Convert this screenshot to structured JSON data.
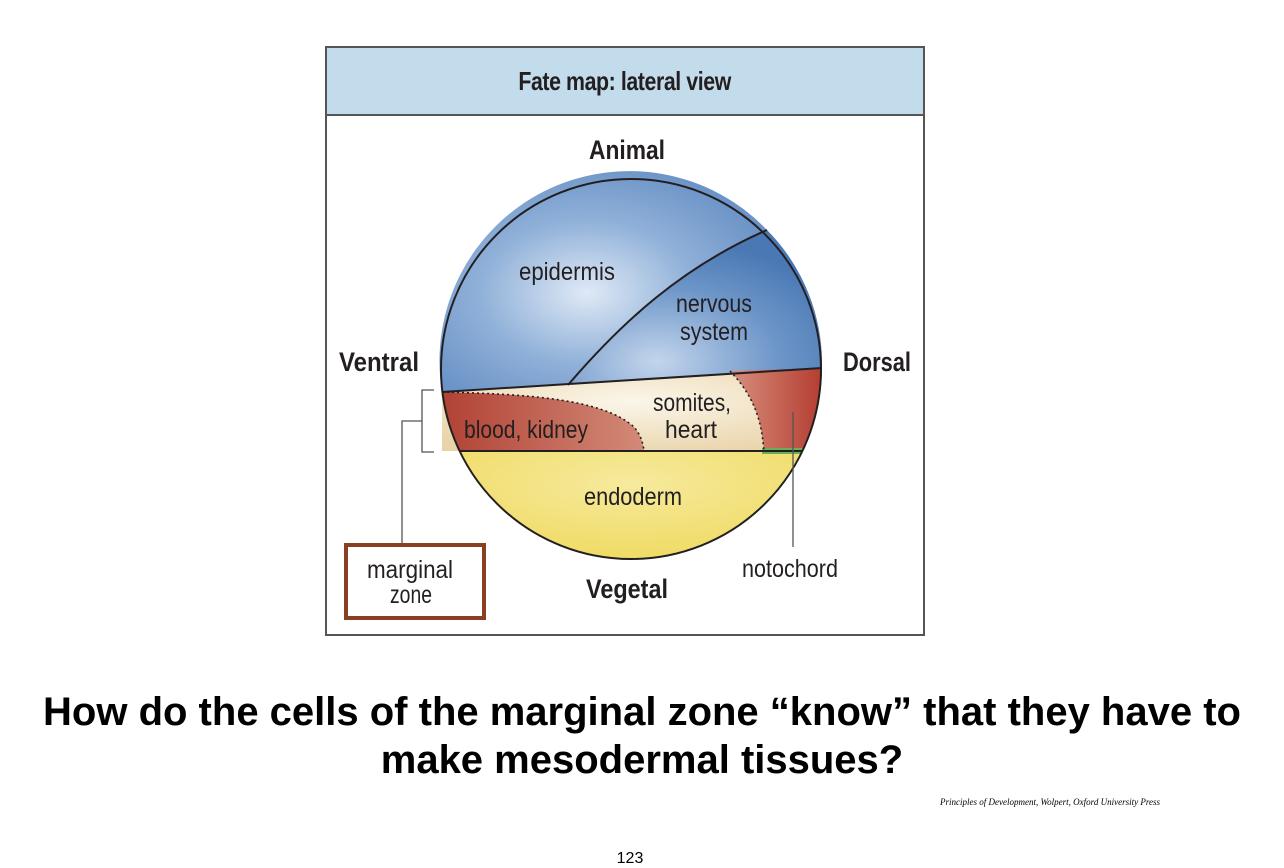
{
  "figure": {
    "title": "Fate map: lateral view",
    "orientation": {
      "top": "Animal",
      "bottom": "Vegetal",
      "left": "Ventral",
      "right": "Dorsal"
    },
    "regions": {
      "epidermis": "epidermis",
      "nervous_system": [
        "nervous",
        "system"
      ],
      "blood_kidney": "blood, kidney",
      "somites_heart": [
        "somites,",
        "heart"
      ],
      "endoderm": "endoderm"
    },
    "callouts": {
      "marginal_zone": [
        "marginal",
        "zone"
      ],
      "notochord": "notochord"
    },
    "colors": {
      "header_bg": "#c3dcec",
      "ectoderm_blue": "#6e97c9",
      "mesoderm_red": "#b64a3c",
      "mesoderm_cream": "#f1e2c3",
      "endoderm_yellow": "#f1df6e",
      "notochord_green": "#6aad5a",
      "marginal_box_border": "#8a3f22"
    }
  },
  "question": "How do the cells of the marginal zone “know” that they have to make mesodermal tissues?",
  "citation": "Principles of Development, Wolpert, Oxford University Press",
  "page_number": "123"
}
